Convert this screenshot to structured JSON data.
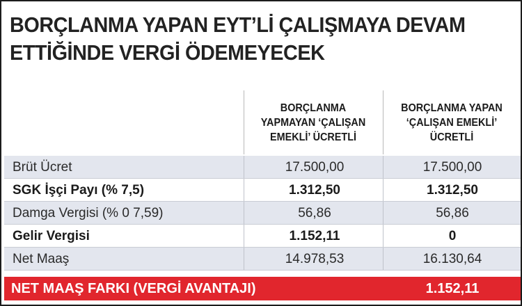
{
  "title": {
    "line1": "BORÇLANMA YAPAN EYT’Lİ ÇALIŞMAYA DEVAM",
    "line2": "ETTİĞİNDE VERGİ ÖDEMEYECEK"
  },
  "columns": {
    "col1": "BORÇLANMA\nYAPMAYAN ‘ÇALIŞAN\nEMEKLİ’ ÜCRETLİ",
    "col2": "BORÇLANMA YAPAN\n‘ÇALIŞAN EMEKLİ’\nÜCRETLİ"
  },
  "rows": [
    {
      "label": "Brüt Ücret",
      "v1": "17.500,00",
      "v2": "17.500,00"
    },
    {
      "label": "SGK İşçi Payı (% 7,5)",
      "v1": "1.312,50",
      "v2": "1.312,50"
    },
    {
      "label": "Damga Vergisi (% 0 7,59)",
      "v1": "56,86",
      "v2": "56,86"
    },
    {
      "label": "Gelir Vergisi",
      "v1": "1.152,11",
      "v2": "0"
    },
    {
      "label": "Net Maaş",
      "v1": "14.978,53",
      "v2": "16.130,64"
    }
  ],
  "total": {
    "label": "NET MAAŞ FARKI (VERGİ AVANTAJI)",
    "value": "1.152,11"
  },
  "colors": {
    "accent_red": "#e1262d",
    "row_shade": "#e3e6ee"
  }
}
